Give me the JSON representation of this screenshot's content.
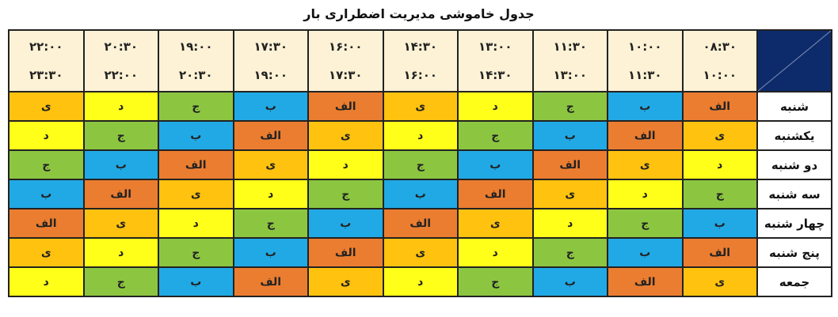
{
  "title": "جدول خاموشی مدیریت اضطراری بار",
  "colors": {
    "الف": "#eb7d30",
    "ب": "#21a9e5",
    "ج": "#8cc641",
    "د": "#ffff1a",
    "ی": "#ffc20e",
    "corner": "#0d2a6b",
    "header_bg": "#fdf2d6"
  },
  "time_slots": [
    {
      "from": "۰۸:۳۰",
      "to": "۱۰:۰۰"
    },
    {
      "from": "۱۰:۰۰",
      "to": "۱۱:۳۰"
    },
    {
      "from": "۱۱:۳۰",
      "to": "۱۳:۰۰"
    },
    {
      "from": "۱۳:۰۰",
      "to": "۱۴:۳۰"
    },
    {
      "from": "۱۴:۳۰",
      "to": "۱۶:۰۰"
    },
    {
      "from": "۱۶:۰۰",
      "to": "۱۷:۳۰"
    },
    {
      "from": "۱۷:۳۰",
      "to": "۱۹:۰۰"
    },
    {
      "from": "۱۹:۰۰",
      "to": "۲۰:۳۰"
    },
    {
      "from": "۲۰:۳۰",
      "to": "۲۲:۰۰"
    },
    {
      "from": "۲۲:۰۰",
      "to": "۲۳:۳۰"
    }
  ],
  "rows": [
    {
      "day": "شنبه",
      "groups": [
        "الف",
        "ب",
        "ج",
        "د",
        "ی",
        "الف",
        "ب",
        "ج",
        "د",
        "ی"
      ]
    },
    {
      "day": "یکشنبه",
      "groups": [
        "ی",
        "الف",
        "ب",
        "ج",
        "د",
        "ی",
        "الف",
        "ب",
        "ج",
        "د"
      ]
    },
    {
      "day": "دو شنبه",
      "groups": [
        "د",
        "ی",
        "الف",
        "ب",
        "ج",
        "د",
        "ی",
        "الف",
        "ب",
        "ج"
      ]
    },
    {
      "day": "سه شنبه",
      "groups": [
        "ج",
        "د",
        "ی",
        "الف",
        "ب",
        "ج",
        "د",
        "ی",
        "الف",
        "ب"
      ]
    },
    {
      "day": "چهار شنبه",
      "groups": [
        "ب",
        "ج",
        "د",
        "ی",
        "الف",
        "ب",
        "ج",
        "د",
        "ی",
        "الف"
      ]
    },
    {
      "day": "پنج شنبه",
      "groups": [
        "الف",
        "ب",
        "ج",
        "د",
        "ی",
        "الف",
        "ب",
        "ج",
        "د",
        "ی"
      ]
    },
    {
      "day": "جمعه",
      "groups": [
        "ی",
        "الف",
        "ب",
        "ج",
        "د",
        "ی",
        "الف",
        "ب",
        "ج",
        "د"
      ]
    }
  ]
}
